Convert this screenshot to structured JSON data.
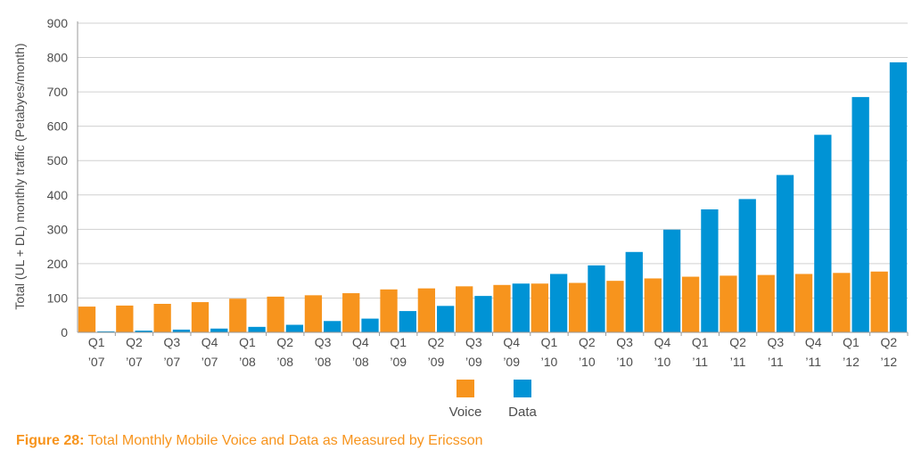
{
  "chart_data": {
    "type": "bar",
    "ylabel": "Total (UL + DL) monthly traffic (Petabyes/month)",
    "ylim": [
      0,
      900
    ],
    "yticks": [
      0,
      100,
      200,
      300,
      400,
      500,
      600,
      700,
      800,
      900
    ],
    "grid": true,
    "legend_position": "bottom-center",
    "categories": [
      [
        "Q1",
        "’07"
      ],
      [
        "Q2",
        "’07"
      ],
      [
        "Q3",
        "’07"
      ],
      [
        "Q4",
        "’07"
      ],
      [
        "Q1",
        "’08"
      ],
      [
        "Q2",
        "’08"
      ],
      [
        "Q3",
        "’08"
      ],
      [
        "Q4",
        "’08"
      ],
      [
        "Q1",
        "’09"
      ],
      [
        "Q2",
        "’09"
      ],
      [
        "Q3",
        "’09"
      ],
      [
        "Q4",
        "’09"
      ],
      [
        "Q1",
        "’10"
      ],
      [
        "Q2",
        "’10"
      ],
      [
        "Q3",
        "’10"
      ],
      [
        "Q4",
        "’10"
      ],
      [
        "Q1",
        "’11"
      ],
      [
        "Q2",
        "’11"
      ],
      [
        "Q3",
        "’11"
      ],
      [
        "Q4",
        "’11"
      ],
      [
        "Q1",
        "’12"
      ],
      [
        "Q2",
        "’12"
      ]
    ],
    "series": [
      {
        "name": "Voice",
        "color": "#f7941d",
        "values": [
          75,
          78,
          83,
          88,
          98,
          104,
          108,
          114,
          125,
          128,
          134,
          138,
          142,
          144,
          150,
          157,
          162,
          165,
          167,
          170,
          173,
          177
        ]
      },
      {
        "name": "Data",
        "color": "#0093d5",
        "values": [
          3,
          5,
          8,
          11,
          16,
          22,
          33,
          40,
          62,
          77,
          106,
          142,
          170,
          195,
          234,
          299,
          358,
          388,
          458,
          575,
          685,
          786
        ]
      }
    ]
  },
  "caption": {
    "label": "Figure 28:",
    "text": " Total Monthly Mobile Voice and Data as Measured by Ericsson"
  },
  "colors": {
    "axis": "#9a9a9a",
    "grid": "#d0d0d0",
    "caption": "#f7941d"
  }
}
